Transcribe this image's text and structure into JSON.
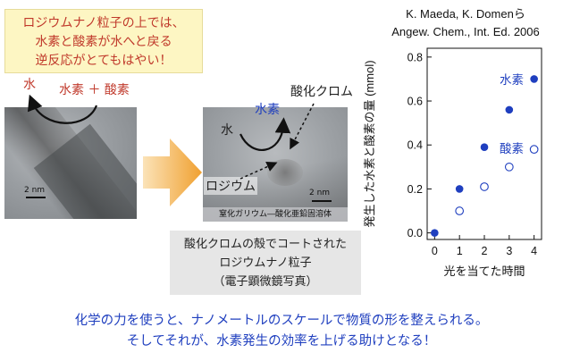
{
  "callout": {
    "lines": [
      "ロジウムナノ粒子の上では、",
      "水素と酸素が水へと戻る",
      "逆反応がとてもはやい！"
    ]
  },
  "left_image": {
    "label_water": "水",
    "label_reactants": "水素 ＋ 酸素",
    "scale": "2 nm"
  },
  "right_image": {
    "label_hydrogen": "水素",
    "label_water": "水",
    "label_chromium_oxide": "酸化クロム",
    "label_rhodium": "ロジウム",
    "scale": "2 nm",
    "substrate": "窒化ガリウム―酸化亜鉛固溶体"
  },
  "tem_caption": {
    "lines": [
      "酸化クロムの殻でコートされた",
      "ロジウムナノ粒子",
      "（電子顕微鏡写真）"
    ]
  },
  "bottom_message": {
    "lines": [
      "化学の力を使うと、ナノメートルのスケールで物質の形を整えられる。",
      "そしてそれが、水素発生の効率を上げる助けとなる！"
    ]
  },
  "citation": {
    "line1": "K. Maeda, K. Domenら",
    "line2": "Angew. Chem., Int. Ed. 2006"
  },
  "colors": {
    "red": "#c0392b",
    "blue": "#1f3fbf",
    "arrow": "#f0a030",
    "callout_bg": "#fdf6c3"
  },
  "chart_data": {
    "type": "scatter",
    "xlabel": "光を当てた時間",
    "ylabel": "発生した水素と酸素の量 (mmol)",
    "xlim": [
      -0.3,
      4.3
    ],
    "ylim": [
      -0.03,
      0.84
    ],
    "xticks": [
      0,
      1,
      2,
      3,
      4
    ],
    "yticks": [
      "0.0",
      "0.2",
      "0.4",
      "0.6",
      "0.8"
    ],
    "series": [
      {
        "name": "水素",
        "marker": "filled",
        "x": [
          0,
          1,
          2,
          3,
          4
        ],
        "y": [
          0.0,
          0.2,
          0.39,
          0.56,
          0.7
        ]
      },
      {
        "name": "酸素",
        "marker": "open",
        "x": [
          1,
          2,
          3,
          4
        ],
        "y": [
          0.1,
          0.21,
          0.3,
          0.38
        ]
      }
    ]
  }
}
